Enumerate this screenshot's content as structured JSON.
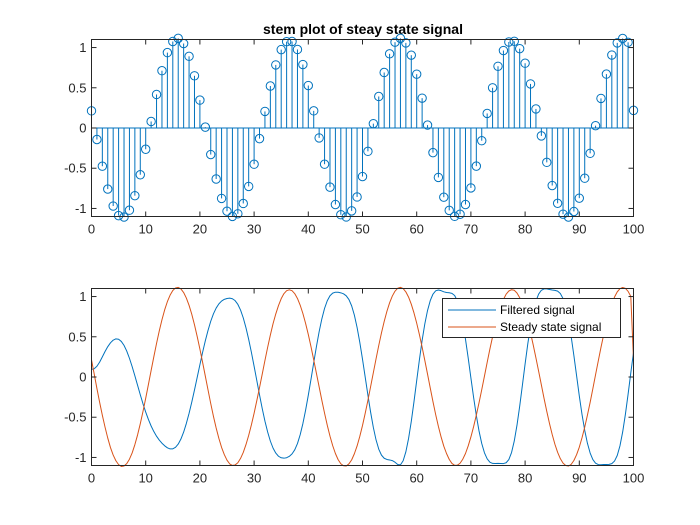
{
  "chart_data": [
    {
      "type": "stem",
      "title": "stem plot of steay state signal",
      "xlabel": "",
      "ylabel": "",
      "xlim": [
        0,
        100
      ],
      "ylim": [
        -1.1,
        1.1
      ],
      "xticks": [
        "0",
        "10",
        "20",
        "30",
        "40",
        "50",
        "60",
        "70",
        "80",
        "90",
        "100"
      ],
      "yticks": [
        "-1",
        "-0.5",
        "0",
        "0.5",
        "1"
      ],
      "grid": false,
      "color": "#0072BD",
      "series": [
        {
          "x": [
            0,
            1,
            2,
            3,
            4,
            5,
            6,
            7,
            8,
            9,
            10,
            11,
            12,
            13,
            14,
            15,
            16,
            17,
            18,
            19,
            20,
            21,
            22,
            23,
            24,
            25,
            26,
            27,
            28,
            29,
            30,
            31,
            32,
            33,
            34,
            35,
            36,
            37,
            38,
            39,
            40,
            41,
            42,
            43,
            44,
            45,
            46,
            47,
            48,
            49,
            50,
            51,
            52,
            53,
            54,
            55,
            56,
            57,
            58,
            59,
            60,
            61,
            62,
            63,
            64,
            65,
            66,
            67,
            68,
            69,
            70,
            71,
            72,
            73,
            74,
            75,
            76,
            77,
            78,
            79,
            80,
            81,
            82,
            83,
            84,
            85,
            86,
            87,
            88,
            89,
            90,
            91,
            92,
            93,
            94,
            95,
            96,
            97,
            98,
            99,
            100
          ],
          "values": [
            0.213,
            -0.143,
            -0.475,
            -0.759,
            -0.97,
            -1.089,
            -1.107,
            -1.022,
            -0.841,
            -0.581,
            -0.264,
            0.081,
            0.417,
            0.712,
            0.937,
            1.075,
            1.114,
            1.05,
            0.891,
            0.649,
            0.347,
            0.011,
            -0.33,
            -0.634,
            -0.875,
            -1.034,
            -1.099,
            -1.066,
            -0.938,
            -0.726,
            -0.45,
            -0.132,
            0.206,
            0.522,
            0.784,
            0.974,
            1.073,
            1.075,
            0.976,
            0.789,
            0.528,
            0.213,
            -0.123,
            -0.45,
            -0.735,
            -0.951,
            -1.078,
            -1.106,
            -1.03,
            -0.857,
            -0.603,
            -0.29,
            0.054,
            0.392,
            0.69,
            0.922,
            1.067,
            1.114,
            1.058,
            0.905,
            0.669,
            0.371,
            0.036,
            -0.306,
            -0.614,
            -0.86,
            -1.024,
            -1.098,
            -1.072,
            -0.951,
            -0.745,
            -0.474,
            -0.158,
            0.181,
            0.5,
            0.767,
            0.963,
            1.069,
            1.078,
            0.986,
            0.805,
            0.548,
            0.237,
            -0.098,
            -0.427,
            -0.715,
            -0.936,
            -1.071,
            -1.107,
            -1.038,
            -0.872,
            -0.624,
            -0.315,
            0.029,
            0.368,
            0.67,
            0.907,
            1.058,
            1.113,
            1.065,
            0.219
          ]
        }
      ]
    },
    {
      "type": "line",
      "title": "",
      "xlabel": "",
      "ylabel": "",
      "xlim": [
        0,
        100
      ],
      "ylim": [
        -1.1,
        1.1
      ],
      "xticks": [
        "0",
        "10",
        "20",
        "30",
        "40",
        "50",
        "60",
        "70",
        "80",
        "90",
        "100"
      ],
      "yticks": [
        "-1",
        "-0.5",
        "0",
        "0.5",
        "1"
      ],
      "grid": false,
      "legend": "top-right",
      "series": [
        {
          "name": "Filtered signal",
          "color": "#0072BD",
          "x": [
            0,
            0.5,
            1,
            1.5,
            2,
            2.5,
            3,
            3.5,
            4,
            4.5,
            5,
            5.5,
            6,
            6.5,
            7,
            7.5,
            8,
            8.5,
            9,
            9.5,
            10,
            10.5,
            11,
            11.5,
            12,
            12.5,
            13,
            13.5,
            14,
            14.5,
            15,
            15.5,
            16,
            16.5,
            17,
            17.5,
            18,
            18.5,
            19,
            19.5,
            20,
            20.5,
            21,
            21.5,
            22,
            22.5,
            23,
            23.5,
            24,
            24.5,
            25,
            25.5,
            26,
            26.5,
            27,
            27.5,
            28,
            28.5,
            29,
            29.5,
            30,
            30.5,
            31,
            31.5,
            32,
            32.5,
            33,
            33.5,
            34,
            34.5,
            35,
            35.5,
            36,
            36.5,
            37,
            37.5,
            38,
            38.5,
            39,
            39.5,
            40,
            40.5,
            41,
            41.5,
            42,
            42.5,
            43,
            43.5,
            44,
            44.5,
            45,
            45.5,
            46,
            46.5,
            47,
            47.5,
            48,
            48.5,
            49,
            49.5,
            50,
            50.5,
            51,
            51.5,
            52,
            52.5,
            53,
            53.5,
            54,
            54.5,
            55,
            55.5,
            56,
            56.5,
            57,
            57.5,
            58,
            58.5,
            59,
            59.5,
            60,
            60.5,
            61,
            61.5,
            62,
            62.5,
            63,
            63.5,
            64,
            64.5,
            65,
            65.5,
            66,
            66.5,
            67,
            67.5,
            68,
            68.5,
            69,
            69.5,
            70,
            70.5,
            71,
            71.5,
            72,
            72.5,
            73,
            73.5,
            74,
            74.5,
            75,
            75.5,
            76,
            76.5,
            77,
            77.5,
            78,
            78.5,
            79,
            79.5,
            80,
            80.5,
            81,
            81.5,
            82,
            82.5,
            83,
            83.5,
            84,
            84.5,
            85,
            85.5,
            86,
            86.5,
            87,
            87.5,
            88,
            88.5,
            89,
            89.5,
            90,
            90.5,
            91,
            91.5,
            92,
            92.5,
            93,
            93.5,
            94,
            94.5,
            95,
            95.5,
            96,
            96.5,
            97,
            97.5,
            98,
            98.5,
            99,
            99.5,
            100
          ],
          "values": [
            0.095,
            0.102,
            0.134,
            0.185,
            0.25,
            0.317,
            0.377,
            0.425,
            0.458,
            0.474,
            0.469,
            0.442,
            0.393,
            0.322,
            0.233,
            0.129,
            0.015,
            -0.103,
            -0.221,
            -0.333,
            -0.436,
            -0.528,
            -0.609,
            -0.678,
            -0.736,
            -0.784,
            -0.823,
            -0.855,
            -0.88,
            -0.894,
            -0.893,
            -0.874,
            -0.834,
            -0.771,
            -0.685,
            -0.577,
            -0.452,
            -0.312,
            -0.162,
            -0.005,
            0.153,
            0.307,
            0.451,
            0.58,
            0.693,
            0.785,
            0.857,
            0.909,
            0.944,
            0.965,
            0.976,
            0.98,
            0.973,
            0.949,
            0.903,
            0.832,
            0.735,
            0.612,
            0.468,
            0.307,
            0.134,
            -0.044,
            -0.222,
            -0.392,
            -0.548,
            -0.684,
            -0.797,
            -0.884,
            -0.946,
            -0.985,
            -1.004,
            -1.009,
            -1.003,
            -0.986,
            -0.956,
            -0.905,
            -0.827,
            -0.718,
            -0.579,
            -0.413,
            -0.227,
            -0.027,
            0.178,
            0.378,
            0.563,
            0.723,
            0.853,
            0.948,
            1.01,
            1.043,
            1.054,
            1.053,
            1.046,
            1.034,
            1.009,
            0.962,
            0.884,
            0.769,
            0.616,
            0.431,
            0.221,
            -0.002,
            -0.226,
            -0.438,
            -0.627,
            -0.782,
            -0.897,
            -0.971,
            -1.01,
            -1.025,
            -1.031,
            -1.039,
            -1.059,
            -1.088,
            -1.092,
            -1.041,
            -0.93,
            -0.764,
            -0.552,
            -0.306,
            -0.044,
            0.215,
            0.454,
            0.661,
            0.827,
            0.95,
            1.03,
            1.071,
            1.081,
            1.073,
            1.059,
            1.05,
            1.047,
            1.04,
            1.013,
            0.947,
            0.834,
            0.673,
            0.47,
            0.237,
            -0.011,
            -0.254,
            -0.478,
            -0.671,
            -0.827,
            -0.942,
            -1.017,
            -1.059,
            -1.074,
            -1.075,
            -1.074,
            -1.075,
            -1.076,
            -1.066,
            -1.026,
            -0.939,
            -0.796,
            -0.6,
            -0.364,
            -0.103,
            0.163,
            0.414,
            0.634,
            0.812,
            0.944,
            1.031,
            1.078,
            1.095,
            1.095,
            1.088,
            1.082,
            1.077,
            1.067,
            1.038,
            0.975,
            0.865,
            0.705,
            0.502,
            0.267,
            0.016,
            -0.235,
            -0.465,
            -0.663,
            -0.824,
            -0.945,
            -1.026,
            -1.071,
            -1.089,
            -1.091,
            -1.088,
            -1.087,
            -1.086,
            -1.077,
            -1.045,
            -0.976,
            -0.856,
            -0.684,
            -0.466,
            -0.215,
            0.05,
            0.306
          ]
        },
        {
          "name": "Steady state signal",
          "color": "#D95319",
          "x": [
            0,
            0.5,
            1,
            1.5,
            2,
            2.5,
            3,
            3.5,
            4,
            4.5,
            5,
            5.5,
            6,
            6.5,
            7,
            7.5,
            8,
            8.5,
            9,
            9.5,
            10,
            10.5,
            11,
            11.5,
            12,
            12.5,
            13,
            13.5,
            14,
            14.5,
            15,
            15.5,
            16,
            16.5,
            17,
            17.5,
            18,
            18.5,
            19,
            19.5,
            20,
            20.5,
            21,
            21.5,
            22,
            22.5,
            23,
            23.5,
            24,
            24.5,
            25,
            25.5,
            26,
            26.5,
            27,
            27.5,
            28,
            28.5,
            29,
            29.5,
            30,
            30.5,
            31,
            31.5,
            32,
            32.5,
            33,
            33.5,
            34,
            34.5,
            35,
            35.5,
            36,
            36.5,
            37,
            37.5,
            38,
            38.5,
            39,
            39.5,
            40,
            40.5,
            41,
            41.5,
            42,
            42.5,
            43,
            43.5,
            44,
            44.5,
            45,
            45.5,
            46,
            46.5,
            47,
            47.5,
            48,
            48.5,
            49,
            49.5,
            50,
            50.5,
            51,
            51.5,
            52,
            52.5,
            53,
            53.5,
            54,
            54.5,
            55,
            55.5,
            56,
            56.5,
            57,
            57.5,
            58,
            58.5,
            59,
            59.5,
            60,
            60.5,
            61,
            61.5,
            62,
            62.5,
            63,
            63.5,
            64,
            64.5,
            65,
            65.5,
            66,
            66.5,
            67,
            67.5,
            68,
            68.5,
            69,
            69.5,
            70,
            70.5,
            71,
            71.5,
            72,
            72.5,
            73,
            73.5,
            74,
            74.5,
            75,
            75.5,
            76,
            76.5,
            77,
            77.5,
            78,
            78.5,
            79,
            79.5,
            80,
            80.5,
            81,
            81.5,
            82,
            82.5,
            83,
            83.5,
            84,
            84.5,
            85,
            85.5,
            86,
            86.5,
            87,
            87.5,
            88,
            88.5,
            89,
            89.5,
            90,
            90.5,
            91,
            91.5,
            92,
            92.5,
            93,
            93.5,
            94,
            94.5,
            95,
            95.5,
            96,
            96.5,
            97,
            97.5,
            98,
            98.5,
            99,
            99.5,
            100
          ],
          "values": [
            0.213,
            0.037,
            -0.143,
            -0.314,
            -0.475,
            -0.624,
            -0.759,
            -0.877,
            -0.97,
            -1.041,
            -1.089,
            -1.112,
            -1.107,
            -1.077,
            -1.022,
            -0.944,
            -0.841,
            -0.72,
            -0.581,
            -0.428,
            -0.264,
            -0.093,
            0.081,
            0.252,
            0.417,
            0.572,
            0.712,
            0.835,
            0.937,
            1.017,
            1.075,
            1.107,
            1.114,
            1.094,
            1.05,
            0.981,
            0.891,
            0.78,
            0.649,
            0.503,
            0.347,
            0.182,
            0.011,
            -0.161,
            -0.33,
            -0.489,
            -0.634,
            -0.763,
            -0.875,
            -0.964,
            -1.034,
            -1.08,
            -1.099,
            -1.093,
            -1.066,
            -1.012,
            -0.938,
            -0.84,
            -0.726,
            -0.595,
            -0.45,
            -0.294,
            -0.132,
            0.036,
            0.206,
            0.369,
            0.522,
            0.663,
            0.784,
            0.888,
            0.974,
            1.036,
            1.073,
            1.084,
            1.073,
            1.036,
            0.976,
            0.893,
            0.789,
            0.667,
            0.528,
            0.376,
            0.213,
            0.045,
            -0.123,
            -0.291,
            -0.45,
            -0.6,
            -0.735,
            -0.853,
            -0.951,
            -1.027,
            -1.078,
            -1.103,
            -1.106,
            -1.079,
            -1.03,
            -0.954,
            -0.857,
            -0.738,
            -0.603,
            -0.451,
            -0.29,
            -0.119,
            0.054,
            0.226,
            0.392,
            0.548,
            0.69,
            0.816,
            0.922,
            1.006,
            1.067,
            1.104,
            1.114,
            1.099,
            1.058,
            0.993,
            0.905,
            0.796,
            0.669,
            0.527,
            0.371,
            0.205,
            0.036,
            -0.137,
            -0.306,
            -0.467,
            -0.614,
            -0.745,
            -0.86,
            -0.951,
            -1.024,
            -1.074,
            -1.098,
            -1.096,
            -1.072,
            -1.022,
            -0.951,
            -0.857,
            -0.745,
            -0.617,
            -0.474,
            -0.32,
            -0.158,
            0.011,
            0.181,
            0.346,
            0.5,
            0.643,
            0.767,
            0.875,
            0.963,
            1.029,
            1.069,
            1.085,
            1.078,
            1.044,
            0.986,
            0.906,
            0.805,
            0.685,
            0.548,
            0.398,
            0.237,
            0.071,
            -0.098,
            -0.267,
            -0.427,
            -0.578,
            -0.715,
            -0.836,
            -0.936,
            -1.015,
            -1.071,
            -1.1,
            -1.107,
            -1.086,
            -1.038,
            -0.966,
            -0.872,
            -0.755,
            -0.624,
            -0.474,
            -0.315,
            -0.145,
            0.029,
            0.2,
            0.368,
            0.526,
            0.67,
            0.798,
            0.907,
            0.994,
            1.058,
            1.098,
            1.113,
            1.102,
            1.065,
            1.002,
            0.219
          ]
        }
      ]
    }
  ]
}
